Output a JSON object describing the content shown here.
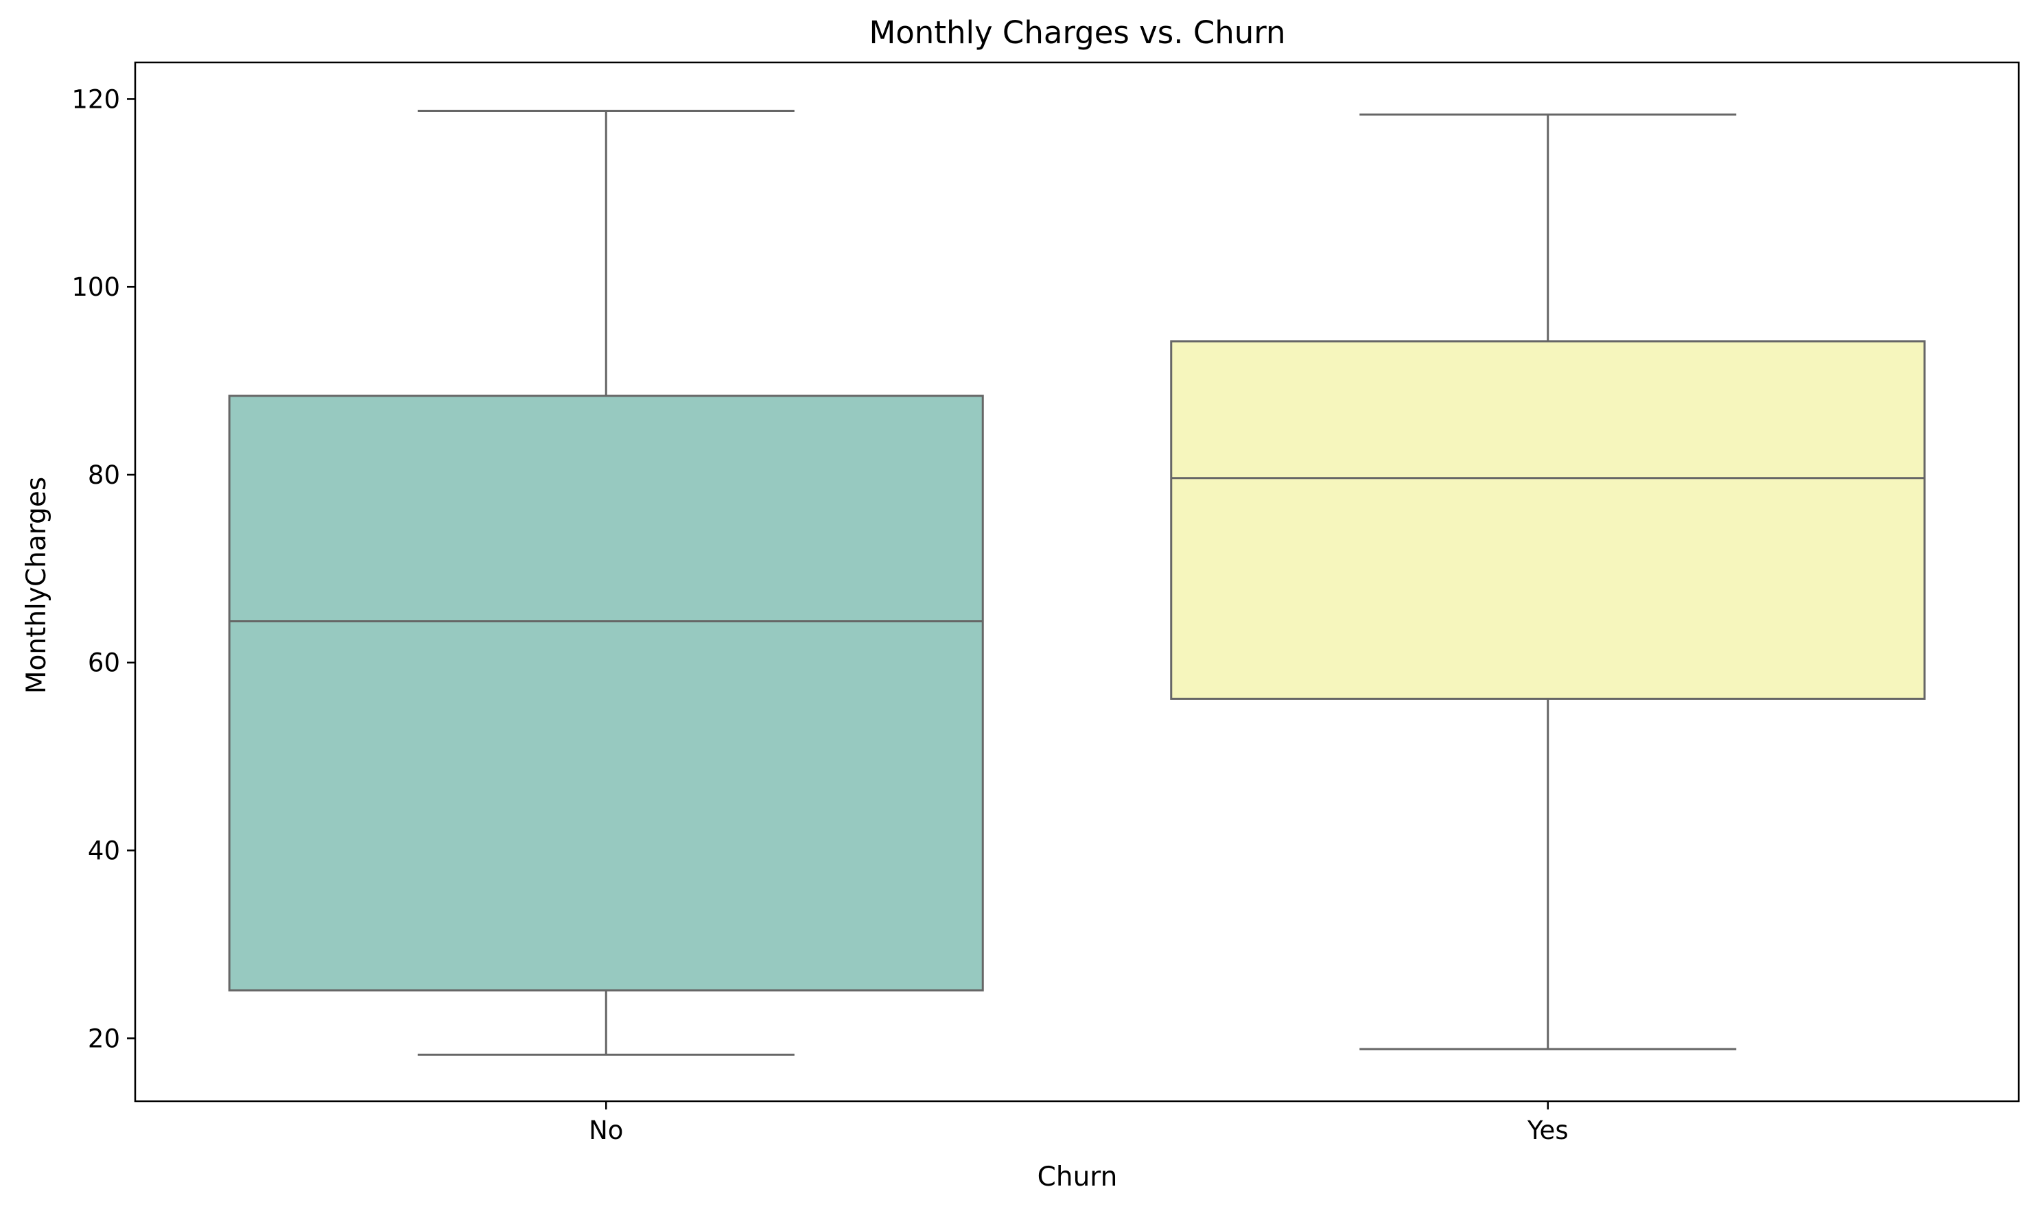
{
  "chart_data": {
    "type": "box",
    "title": "Monthly Charges vs. Churn",
    "xlabel": "Churn",
    "ylabel": "MonthlyCharges",
    "ylim": [
      13.3,
      123.9
    ],
    "yticks": [
      20,
      40,
      60,
      80,
      100,
      120
    ],
    "ytick_labels": [
      "20",
      "40",
      "60",
      "80",
      "100",
      "120"
    ],
    "categories": [
      "No",
      "Yes"
    ],
    "grid": false,
    "boxes": [
      {
        "category": "No",
        "whisker_low": 18.25,
        "q1": 25.1,
        "median": 64.4,
        "q3": 88.4,
        "whisker_high": 118.75,
        "color": "#97c9c0"
      },
      {
        "category": "Yes",
        "whisker_low": 18.85,
        "q1": 56.15,
        "median": 79.65,
        "q3": 94.2,
        "whisker_high": 118.35,
        "color": "#f6f6bd"
      }
    ],
    "line_color": "#666666"
  }
}
